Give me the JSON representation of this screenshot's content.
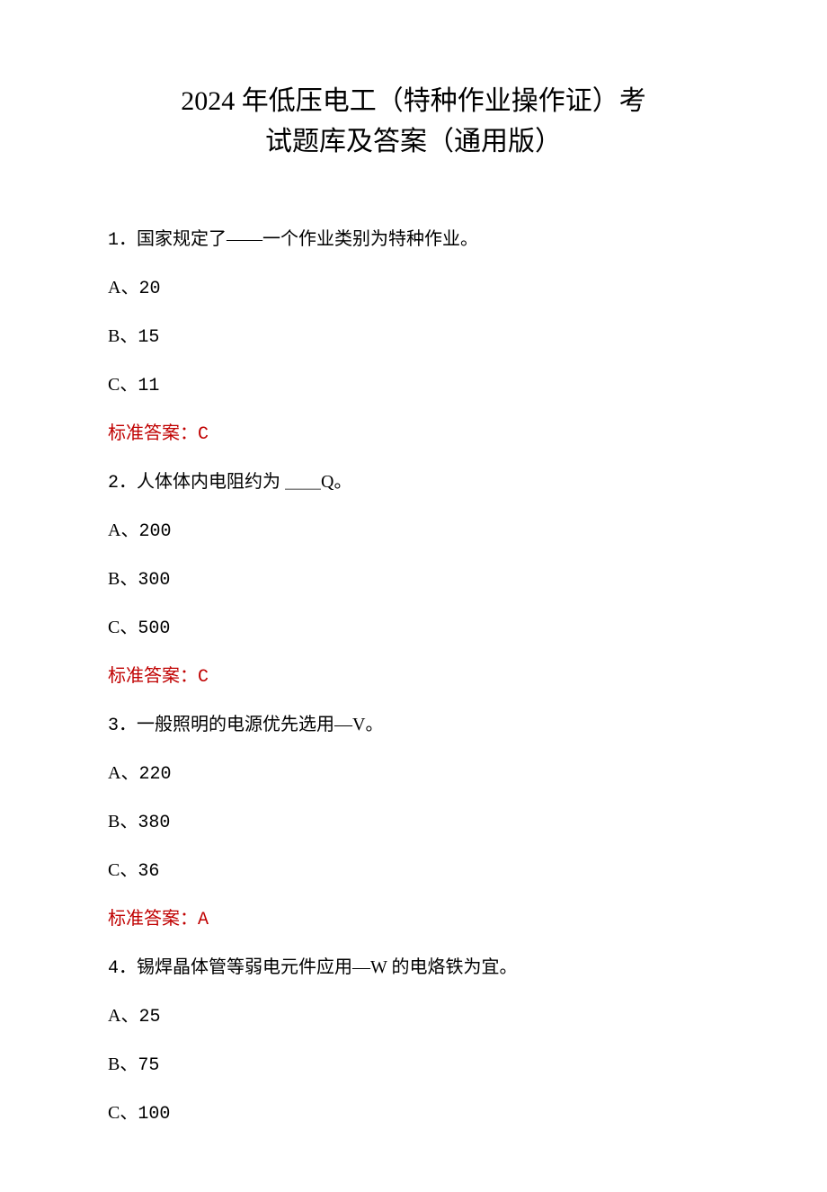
{
  "title": {
    "line1": "2024 年低压电工（特种作业操作证）考",
    "line2": "试题库及答案（通用版）"
  },
  "answerLabel": "标准答案：",
  "answerColor": "#c00000",
  "textColor": "#000000",
  "backgroundColor": "#ffffff",
  "fontSize": {
    "title": 30,
    "body": 20
  },
  "questions": [
    {
      "number": "1",
      "text": "．国家规定了——一个作业类别为特种作业。",
      "options": [
        {
          "label": "A、",
          "value": "20"
        },
        {
          "label": "B、",
          "value": "15"
        },
        {
          "label": "C、",
          "value": "11"
        }
      ],
      "answer": "C"
    },
    {
      "number": "2",
      "text": "．人体体内电阻约为 ＿＿Q。",
      "options": [
        {
          "label": "A、",
          "value": "200"
        },
        {
          "label": "B、",
          "value": "300"
        },
        {
          "label": "C、",
          "value": "500"
        }
      ],
      "answer": "C"
    },
    {
      "number": "3",
      "text": "．一般照明的电源优先选用—V。",
      "options": [
        {
          "label": "A、",
          "value": "220"
        },
        {
          "label": "B、",
          "value": "380"
        },
        {
          "label": "C、",
          "value": "36"
        }
      ],
      "answer": "A"
    },
    {
      "number": "4",
      "text": "．锡焊晶体管等弱电元件应用—W 的电烙铁为宜。",
      "options": [
        {
          "label": "A、",
          "value": "25"
        },
        {
          "label": "B、",
          "value": "75"
        },
        {
          "label": "C、",
          "value": "100"
        }
      ],
      "answer": null
    }
  ]
}
